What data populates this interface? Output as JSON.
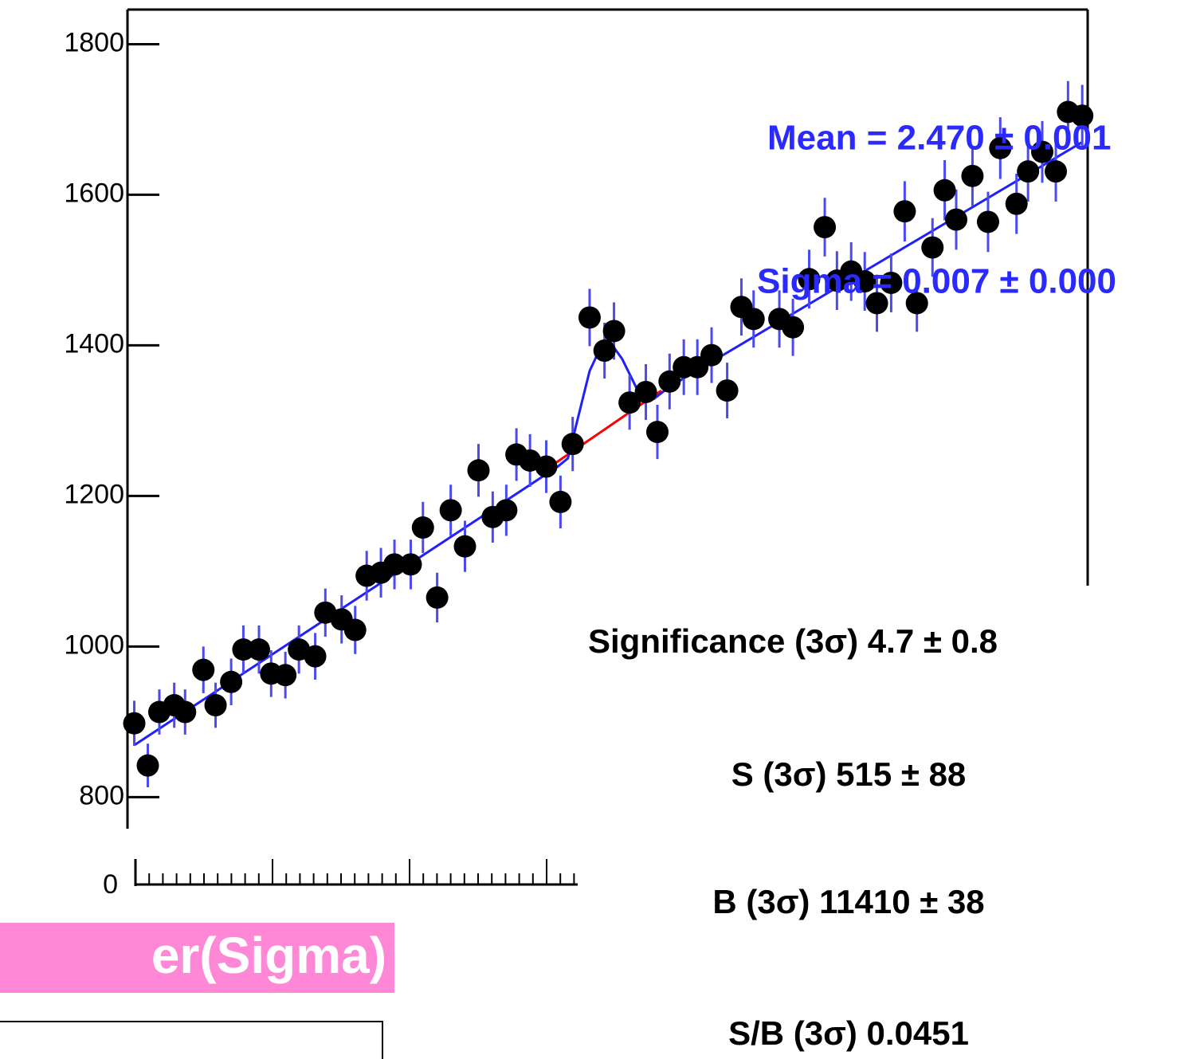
{
  "chart_data": {
    "type": "scatter",
    "x": [
      2.4004,
      2.4024,
      2.4041,
      2.4063,
      2.4079,
      2.4106,
      2.4124,
      2.4147,
      2.4165,
      2.4188,
      2.4206,
      2.4227,
      2.4247,
      2.4271,
      2.4286,
      2.431,
      2.433,
      2.4347,
      2.4368,
      2.4388,
      2.4412,
      2.443,
      2.4451,
      2.4471,
      2.4492,
      2.4512,
      2.4533,
      2.4553,
      2.4568,
      2.4588,
      2.4612,
      2.4633,
      2.4651,
      2.4676,
      2.4698,
      2.4712,
      2.4735,
      2.4759,
      2.4776,
      2.4794,
      2.4815,
      2.4835,
      2.4856,
      2.4879,
      2.49,
      2.4918,
      2.4956,
      2.4976,
      2.5,
      2.5023,
      2.5041,
      2.5062,
      2.5082,
      2.51,
      2.5121,
      2.5141,
      2.5159,
      2.5182,
      2.52,
      2.5217,
      2.5241,
      2.5264,
      2.5282,
      2.5306,
      2.5323,
      2.5344,
      2.5364,
      2.5382,
      2.5403
    ],
    "values": [
      898,
      842,
      913,
      922,
      913,
      969,
      922,
      953,
      996,
      996,
      964,
      962,
      996,
      987,
      1045,
      1036,
      1022,
      1094,
      1098,
      1109,
      1109,
      1158,
      1065,
      1181,
      1133,
      1234,
      1172,
      1181,
      1255,
      1247,
      1239,
      1192,
      1269,
      1437,
      1393,
      1419,
      1324,
      1338,
      1285,
      1352,
      1371,
      1371,
      1387,
      1340,
      1451,
      1435,
      1435,
      1424,
      1488,
      1557,
      1486,
      1498,
      1485,
      1456,
      1483,
      1578,
      1456,
      1530,
      1606,
      1567,
      1625,
      1564,
      1662,
      1588,
      1631,
      1657,
      1631,
      1710,
      1705
    ],
    "errors": [
      30,
      29,
      30,
      30,
      30,
      31,
      30,
      31,
      32,
      32,
      31,
      31,
      32,
      31,
      32,
      32,
      32,
      33,
      33,
      33,
      33,
      34,
      33,
      34,
      34,
      35,
      34,
      34,
      35,
      35,
      35,
      35,
      36,
      38,
      37,
      38,
      36,
      37,
      36,
      37,
      37,
      37,
      37,
      37,
      38,
      38,
      38,
      38,
      39,
      39,
      39,
      39,
      39,
      38,
      39,
      40,
      38,
      39,
      40,
      40,
      40,
      40,
      41,
      40,
      40,
      41,
      40,
      41,
      41
    ],
    "color": "#000000",
    "error_color": "#4a4af0",
    "fit": {
      "x": [
        2.4004,
        2.4629,
        2.4644,
        2.4676,
        2.47,
        2.4724,
        2.4747,
        2.4771,
        2.4794,
        2.5403
      ],
      "values": [
        869,
        1239,
        1250,
        1366,
        1412,
        1382,
        1340,
        1329,
        1345,
        1670
      ],
      "color": "#2020ff"
    },
    "background": {
      "x": [
        2.4618,
        2.4782
      ],
      "values": [
        1239,
        1340
      ],
      "color": "#ff0000"
    },
    "xlim": [
      2.3994,
      2.5411
    ],
    "ylim": [
      758,
      1846
    ],
    "yticks": [
      800,
      1000,
      1200,
      1400,
      1600,
      1800
    ],
    "annotations": [
      "Mean = 2.470 ± 0.001",
      "Sigma = 0.007 ± 0.000"
    ],
    "lower_pad_tick": 0
  },
  "stats": [
    "Significance (3σ) 4.7 ± 0.8",
    "S (3σ) 515 ± 88",
    "B (3σ) 11410 ± 38",
    "S/B (3σ) 0.0451"
  ],
  "label": "er(Sigma)"
}
